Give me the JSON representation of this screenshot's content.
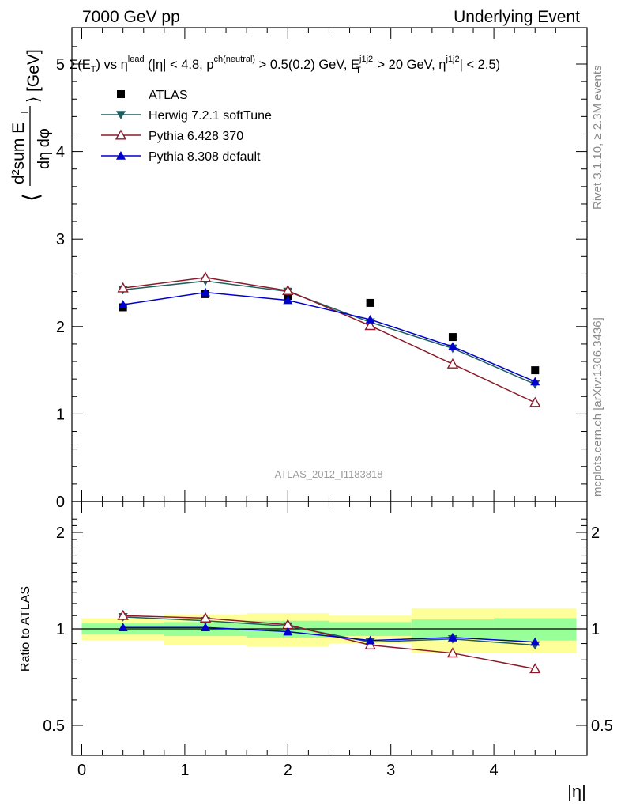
{
  "header": {
    "left": "7000 GeV pp",
    "right": "Underlying Event"
  },
  "top_panel": {
    "selection_label": "Σ(E_T) vs η^lead (|η| < 4.8, p^ch(neutral) > 0.5(0.2) GeV, E_T^j1j2 > 20 GeV, η^j1j2 | < 2.5)",
    "selection_parts": {
      "a": "Σ(E",
      "a_sub": "T",
      "b": ") vs η",
      "b_sup": "lead",
      "c": " (|η| < 4.8, p",
      "c_sup": "ch(neutral)",
      "d": " > 0.5(0.2) GeV, E",
      "d_sup": "j1j2",
      "d_sub": "T",
      "e": " > 20 GeV, η",
      "e_sup": "j1j2",
      "f": "| < 2.5)"
    },
    "ylabel_parts": {
      "open": "⟨",
      "num": "d²sum E",
      "num_sub": "T",
      "den": "dη dφ",
      "close": "⟩ [GeV]"
    },
    "watermark": "ATLAS_2012_I1183818"
  },
  "side_labels": {
    "rivet": "Rivet 3.1.10, ≥ 2.3M events",
    "mcplots": "mcplots.cern.ch [arXiv:1306.3436]"
  },
  "bottom_panel": {
    "ylabel": "Ratio to ATLAS"
  },
  "xaxis": {
    "label": "|η|"
  },
  "colors": {
    "atlas": "#000000",
    "herwig": "#1f5f5f",
    "pythia6": "#8b1a2a",
    "pythia8": "#0000cc",
    "band_inner": "#99ff99",
    "band_outer": "#ffff99"
  },
  "chart_data": [
    {
      "type": "scatter",
      "panel": "main",
      "x": [
        0.4,
        1.2,
        2.0,
        2.8,
        3.6,
        4.4
      ],
      "ylim": [
        0,
        5.4
      ],
      "xlim": [
        -0.1,
        4.9
      ],
      "yticks": [
        0,
        1,
        2,
        3,
        4,
        5
      ],
      "ytick_labels": [
        "0",
        "1",
        "2",
        "3",
        "4",
        "5"
      ],
      "legend_position": "top-left",
      "series": [
        {
          "name": "ATLAS",
          "marker": "square",
          "values": [
            2.22,
            2.37,
            2.35,
            2.27,
            1.88,
            1.5
          ]
        },
        {
          "name": "Herwig 7.2.1 softTune",
          "marker": "triangle-down",
          "values": [
            2.42,
            2.52,
            2.4,
            2.05,
            1.75,
            1.34
          ]
        },
        {
          "name": "Pythia 6.428 370",
          "marker": "triangle-open",
          "values": [
            2.44,
            2.56,
            2.41,
            2.01,
            1.57,
            1.13
          ]
        },
        {
          "name": "Pythia 8.308 default",
          "marker": "triangle-up",
          "values": [
            2.25,
            2.39,
            2.3,
            2.08,
            1.77,
            1.37
          ]
        }
      ]
    },
    {
      "type": "line",
      "panel": "ratio",
      "x": [
        0.4,
        1.2,
        2.0,
        2.8,
        3.6,
        4.4
      ],
      "ylim": [
        0.38,
        2.3
      ],
      "yticks": [
        0.5,
        1,
        2
      ],
      "ytick_labels": [
        "0.5",
        "1",
        "2"
      ],
      "xticks": [
        0,
        1,
        2,
        3,
        4
      ],
      "xtick_labels": [
        "0",
        "1",
        "2",
        "3",
        "4"
      ],
      "bins": [
        [
          0.0,
          0.8
        ],
        [
          0.8,
          1.6
        ],
        [
          1.6,
          2.4
        ],
        [
          2.4,
          3.2
        ],
        [
          3.2,
          4.0
        ],
        [
          4.0,
          4.8
        ]
      ],
      "band_inner": [
        [
          0.96,
          1.04
        ],
        [
          0.95,
          1.05
        ],
        [
          0.94,
          1.06
        ],
        [
          0.95,
          1.05
        ],
        [
          0.93,
          1.07
        ],
        [
          0.92,
          1.08
        ]
      ],
      "band_outer": [
        [
          0.92,
          1.08
        ],
        [
          0.89,
          1.11
        ],
        [
          0.88,
          1.12
        ],
        [
          0.9,
          1.1
        ],
        [
          0.84,
          1.16
        ],
        [
          0.84,
          1.16
        ]
      ],
      "series": [
        {
          "name": "Herwig 7.2.1 softTune",
          "values": [
            1.09,
            1.06,
            1.02,
            0.91,
            0.93,
            0.89
          ]
        },
        {
          "name": "Pythia 6.428 370",
          "values": [
            1.1,
            1.08,
            1.03,
            0.89,
            0.84,
            0.75
          ]
        },
        {
          "name": "Pythia 8.308 default",
          "values": [
            1.01,
            1.01,
            0.98,
            0.92,
            0.94,
            0.91
          ]
        }
      ]
    }
  ]
}
